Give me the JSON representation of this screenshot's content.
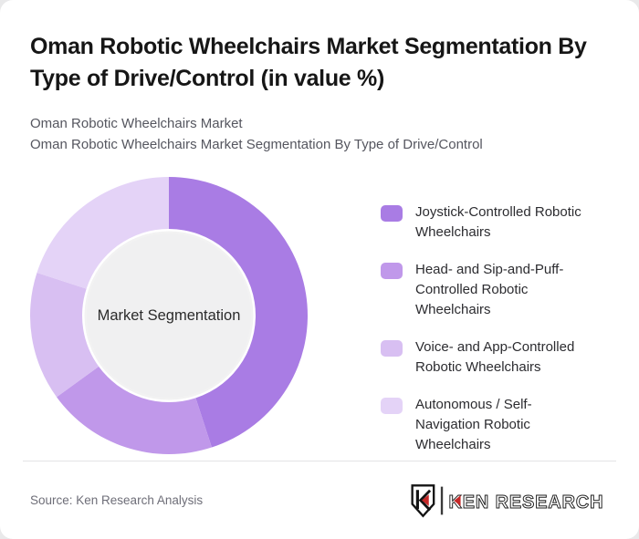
{
  "page": {
    "background_color": "#e9e9ea",
    "card_background": "#ffffff"
  },
  "header": {
    "title": "Oman Robotic Wheelchairs Market Segmentation By Type of Drive/Control (in value %)",
    "subtitle_line1": "Oman Robotic Wheelchairs Market",
    "subtitle_line2": "Oman Robotic Wheelchairs Market Segmentation By Type of Drive/Control"
  },
  "chart_data": {
    "type": "pie",
    "variant": "donut",
    "title": "Oman Robotic Wheelchairs Market Segmentation By Type of Drive/Control (in value %)",
    "center_label": "Market Segmentation",
    "legend_position": "right",
    "start_angle_deg": 0,
    "direction": "clockwise",
    "values_labeled_on_chart": false,
    "inner_circle_color": "#f0f0f1",
    "segments": [
      {
        "label": "Joystick-Controlled Robotic Wheelchairs",
        "value_pct": 45,
        "color": "#a97ce4"
      },
      {
        "label": "Head- and Sip-and-Puff-Controlled Robotic Wheelchairs",
        "value_pct": 20,
        "color": "#c098ea"
      },
      {
        "label": "Voice- and App-Controlled Robotic Wheelchairs",
        "value_pct": 15,
        "color": "#d8bff2"
      },
      {
        "label": "Autonomous / Self-Navigation Robotic Wheelchairs",
        "value_pct": 20,
        "color": "#e4d3f7"
      }
    ]
  },
  "footer": {
    "source": "Source: Ken Research Analysis",
    "logo": {
      "text": "KEN RESEARCH",
      "monogram": "K",
      "accent_color": "#c62828",
      "outline_color": "#1f1f1f"
    }
  }
}
